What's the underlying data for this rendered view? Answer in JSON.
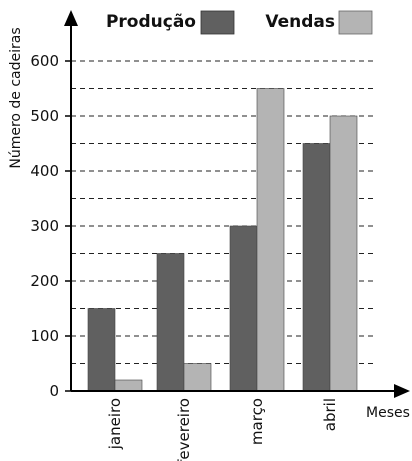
{
  "chart_data": {
    "type": "bar",
    "title": "",
    "xlabel": "Meses",
    "ylabel": "Número de cadeiras",
    "categories": [
      "janeiro",
      "fevereiro",
      "março",
      "abril"
    ],
    "series": [
      {
        "name": "Produção",
        "values": [
          150,
          250,
          300,
          450
        ],
        "color": "#606060"
      },
      {
        "name": "Vendas",
        "values": [
          20,
          50,
          550,
          500
        ],
        "color": "#b4b4b4"
      }
    ],
    "ylim": [
      0,
      650
    ],
    "yticks": [
      "0",
      "100",
      "200",
      "300",
      "400",
      "500",
      "600"
    ],
    "ytick_values": [
      0,
      100,
      200,
      300,
      400,
      500,
      600
    ],
    "grid": "dashed horizontal every 50",
    "legend_position": "top"
  }
}
